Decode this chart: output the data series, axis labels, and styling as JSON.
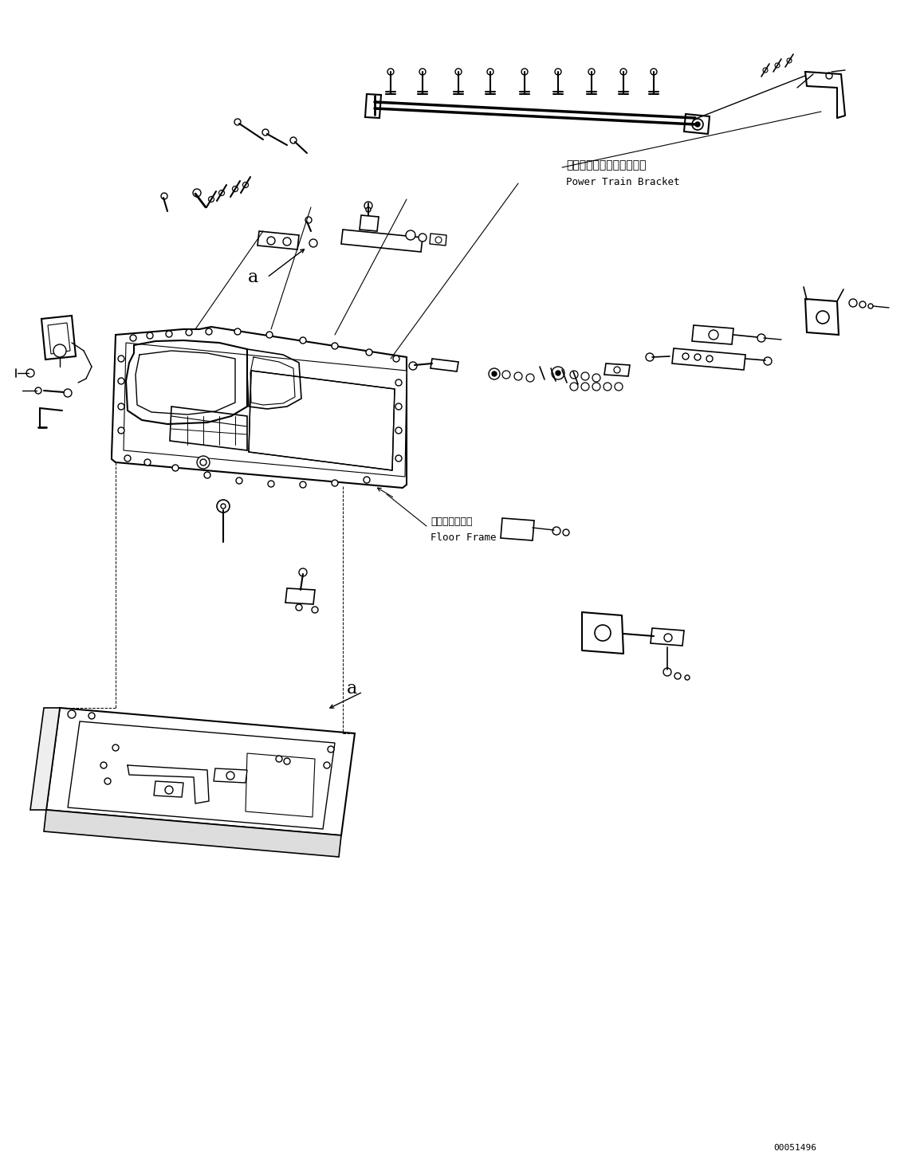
{
  "bg_color": "#ffffff",
  "fig_width": 11.59,
  "fig_height": 14.59,
  "dpi": 100,
  "part_number": "00051496",
  "label_power_train_jp": "パワートレインブラケット",
  "label_power_train_en": "Power Train Bracket",
  "label_floor_frame_jp": "フロアフレーム",
  "label_floor_frame_en": "Floor Frame",
  "label_a": "a"
}
